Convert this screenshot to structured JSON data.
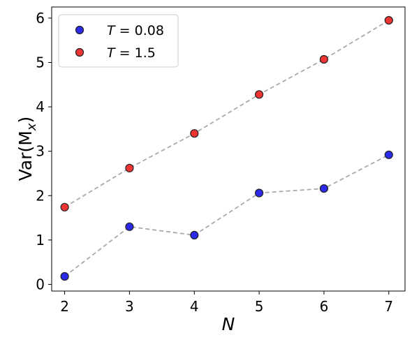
{
  "chart_data": {
    "type": "scatter",
    "xlabel": "N",
    "ylabel_main": "Var(M",
    "ylabel_sub": "x",
    "ylabel_close": ")",
    "xlim": [
      1.8,
      7.25
    ],
    "ylim": [
      -0.15,
      6.25
    ],
    "xticks": [
      2,
      3,
      4,
      5,
      6,
      7
    ],
    "yticks": [
      0,
      1,
      2,
      3,
      4,
      5,
      6
    ],
    "grid": false,
    "legend_position": "top-left",
    "connector_color": "#aaaaaa",
    "series": [
      {
        "legend_var": "T",
        "legend_rest": " = 0.08",
        "color": "#2a2ae8",
        "x": [
          2,
          3,
          4,
          5,
          6,
          7
        ],
        "y": [
          0.18,
          1.3,
          1.11,
          2.06,
          2.16,
          2.92
        ]
      },
      {
        "legend_var": "T",
        "legend_rest": " = 1.5",
        "color": "#ee3333",
        "x": [
          2,
          3,
          4,
          5,
          6,
          7
        ],
        "y": [
          1.74,
          2.62,
          3.4,
          4.28,
          5.07,
          5.95
        ]
      }
    ]
  }
}
